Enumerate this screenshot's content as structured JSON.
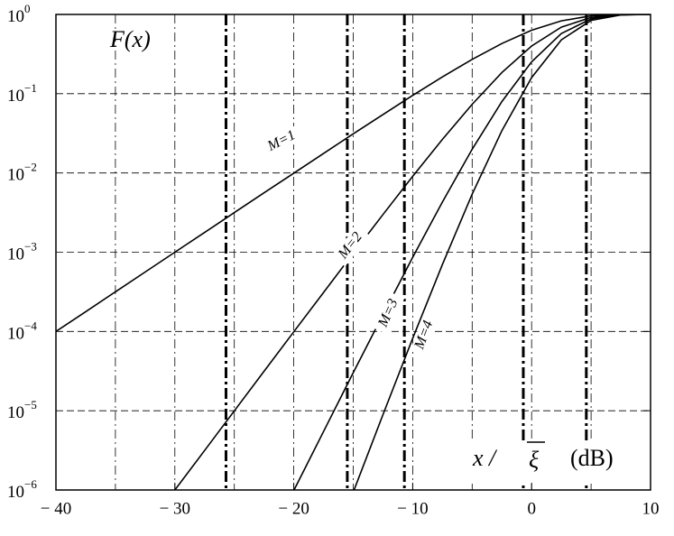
{
  "chart_data": {
    "type": "line",
    "yscale": "log",
    "grid": true,
    "y_label": "F(x)",
    "x_label_var": "x /",
    "x_label_sym": "ξ",
    "x_label_unit": "(dB)",
    "x": [
      -40,
      -37.5,
      -35,
      -32.5,
      -30,
      -27.5,
      -25,
      -22.5,
      -20,
      -17.5,
      -15,
      -12.5,
      -10,
      -7.5,
      -5,
      -2.5,
      0,
      2.5,
      5,
      7.5,
      10
    ],
    "series": [
      {
        "name": "M=1",
        "color": "#000000",
        "values": [
          0.0001,
          0.0001778,
          0.0003162,
          0.0005621,
          0.0009995,
          0.001776,
          0.003157,
          0.005607,
          0.00995,
          0.01762,
          0.03113,
          0.05468,
          0.0952,
          0.1629,
          0.2711,
          0.4302,
          0.6321,
          0.831,
          0.9577,
          0.9964,
          0.99995
        ]
      },
      {
        "name": "M=2",
        "color": "#000000",
        "values": [
          null,
          null,
          null,
          null,
          9.99e-07,
          3.154e-06,
          9.967e-06,
          3.144e-05,
          9.9e-05,
          0.0003105,
          0.000969,
          0.00299,
          0.00906,
          0.02654,
          0.0735,
          0.1851,
          0.3996,
          0.6906,
          0.9172,
          0.9928,
          0.9999
        ]
      },
      {
        "name": "M=3",
        "color": "#000000",
        "values": [
          null,
          null,
          null,
          null,
          null,
          null,
          null,
          null,
          9.85e-07,
          5.47e-06,
          3.017e-05,
          0.0001635,
          0.000863,
          0.004323,
          0.01993,
          0.0796,
          0.2526,
          0.5739,
          0.8784,
          0.9892,
          0.99985
        ]
      },
      {
        "name": "M=4",
        "color": "#000000",
        "values": [
          null,
          null,
          null,
          null,
          null,
          null,
          null,
          null,
          null,
          null,
          9.39e-07,
          8.94e-06,
          8.21e-05,
          0.000704,
          0.0054,
          0.03425,
          0.1597,
          0.4769,
          0.8412,
          0.9856,
          0.9998
        ]
      }
    ],
    "reference_lines": [
      -25.7,
      -15.5,
      -10.7,
      -0.7,
      4.6
    ],
    "xlim": [
      -40,
      10
    ],
    "xticks": [
      {
        "value": -40,
        "label": "− 40"
      },
      {
        "value": -30,
        "label": "− 30"
      },
      {
        "value": -20,
        "label": "− 20"
      },
      {
        "value": -10,
        "label": "− 10"
      },
      0,
      10
    ],
    "xgrid": [
      -35,
      -30,
      -25,
      -20,
      -15,
      -10,
      -5,
      0,
      5
    ],
    "ylim": [
      1e-06,
      1
    ],
    "yticks": [
      {
        "value": 1,
        "label": "10",
        "exponent": "0"
      },
      {
        "value": 0.1,
        "label": "10",
        "exponent": "−1"
      },
      {
        "value": 0.01,
        "label": "10",
        "exponent": "−2"
      },
      {
        "value": 0.001,
        "label": "10",
        "exponent": "−3"
      },
      {
        "value": 0.0001,
        "label": "10",
        "exponent": "−4"
      },
      {
        "value": 1e-05,
        "label": "10",
        "exponent": "−5"
      },
      {
        "value": 1e-06,
        "label": "10",
        "exponent": "−6"
      }
    ]
  }
}
